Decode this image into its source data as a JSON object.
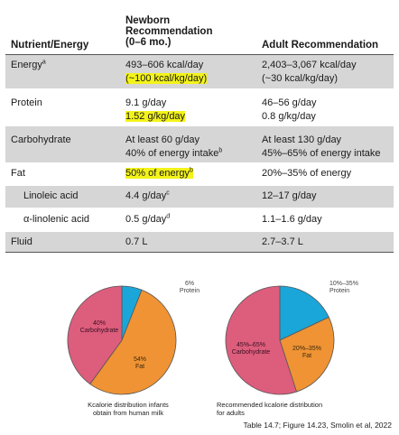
{
  "table": {
    "headers": {
      "nutrient": "Nutrient/Energy",
      "newborn": "Newborn\nRecommendation\n(0–6 mo.)",
      "adult": "Adult Recommendation"
    },
    "rows": [
      {
        "nutrient": "Energy",
        "nutrient_sup": "a",
        "newborn_1": "493–606 kcal/day",
        "newborn_2": "(~100 kcal/kg/day)",
        "adult_1": "2,403–3,067 kcal/day",
        "adult_2": "(~30 kcal/kg/day)"
      },
      {
        "nutrient": "Protein",
        "newborn_1": "9.1 g/day",
        "newborn_2": "1.52 g/kg/day",
        "adult_1": "46–56 g/day",
        "adult_2": "0.8 g/kg/day"
      },
      {
        "nutrient": "Carbohydrate",
        "newborn_1": "At least 60 g/day",
        "newborn_2": "40% of energy intake",
        "newborn_2_sup": "b",
        "adult_1": "At least 130 g/day",
        "adult_2": "45%–65% of energy intake"
      },
      {
        "nutrient": "Fat",
        "newborn_1": "50% of energy",
        "newborn_1_sup": "b",
        "adult_1": "20%–35% of energy"
      },
      {
        "nutrient": "Linoleic acid",
        "newborn_1": "4.4 g/day",
        "newborn_1_sup": "c",
        "adult_1": "12–17 g/day"
      },
      {
        "nutrient": "α-linolenic acid",
        "newborn_1": "0.5 g/day",
        "newborn_1_sup": "d",
        "adult_1": "1.1–1.6 g/day"
      },
      {
        "nutrient": "Fluid",
        "newborn_1": "0.7 L",
        "adult_1": "2.7–3.7 L"
      }
    ]
  },
  "pies": {
    "infant": {
      "slices": [
        {
          "label": "6%\nProtein",
          "value": 6,
          "color": "#1aa6d8"
        },
        {
          "label": "54%\nFat",
          "value": 54,
          "color": "#ef9334"
        },
        {
          "label": "40%\nCarbohydrate",
          "value": 40,
          "color": "#dd5d7d"
        }
      ],
      "caption": "Kcalorie distribution infants\nobtain from human milk"
    },
    "adult": {
      "slices": [
        {
          "label": "10%–35%\nProtein",
          "value": 18,
          "color": "#1aa6d8"
        },
        {
          "label": "20%–35%\nFat",
          "value": 27,
          "color": "#ef9334"
        },
        {
          "label": "45%–65%\nCarbohydrate",
          "value": 55,
          "color": "#dd5d7d"
        }
      ],
      "caption": "Recommended kcalorie distribution\nfor adults"
    }
  },
  "source": "Table 14.7; Figure 14.23, Smolin et al, 2022",
  "colors": {
    "highlight": "#f3f31a",
    "row_gray": "#d6d6d6"
  }
}
